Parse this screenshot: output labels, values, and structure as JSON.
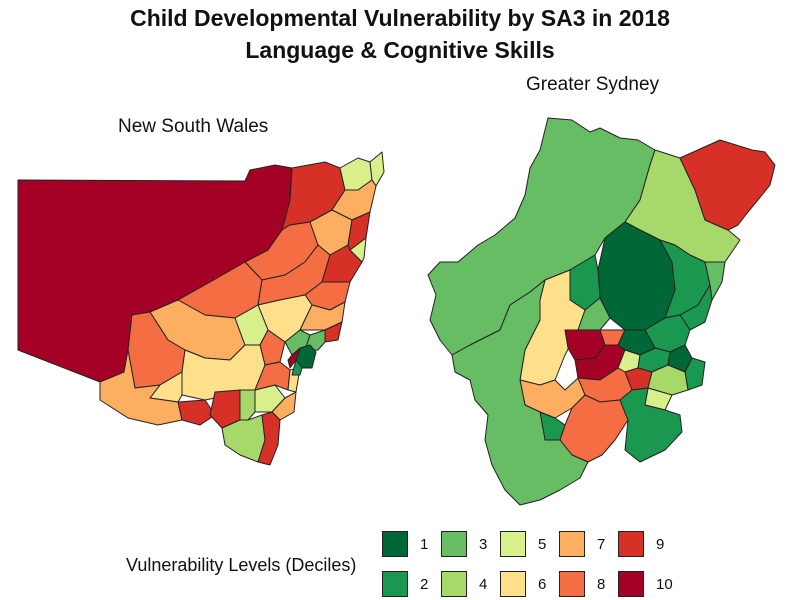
{
  "title": {
    "line1": "Child Developmental Vulnerability by SA3 in 2018",
    "line2": "Language & Cognitive Skills"
  },
  "panels": {
    "nsw": "New South Wales",
    "sydney": "Greater Sydney"
  },
  "legend": {
    "title": "Vulnerability Levels (Deciles)",
    "items": [
      {
        "label": "1",
        "color": "#006837"
      },
      {
        "label": "2",
        "color": "#1a9850"
      },
      {
        "label": "3",
        "color": "#66bd63"
      },
      {
        "label": "4",
        "color": "#a6d96a"
      },
      {
        "label": "5",
        "color": "#d9ef8b"
      },
      {
        "label": "6",
        "color": "#fee08b"
      },
      {
        "label": "7",
        "color": "#fdae61"
      },
      {
        "label": "8",
        "color": "#f46d43"
      },
      {
        "label": "9",
        "color": "#d73027"
      },
      {
        "label": "10",
        "color": "#a50026"
      }
    ]
  }
}
